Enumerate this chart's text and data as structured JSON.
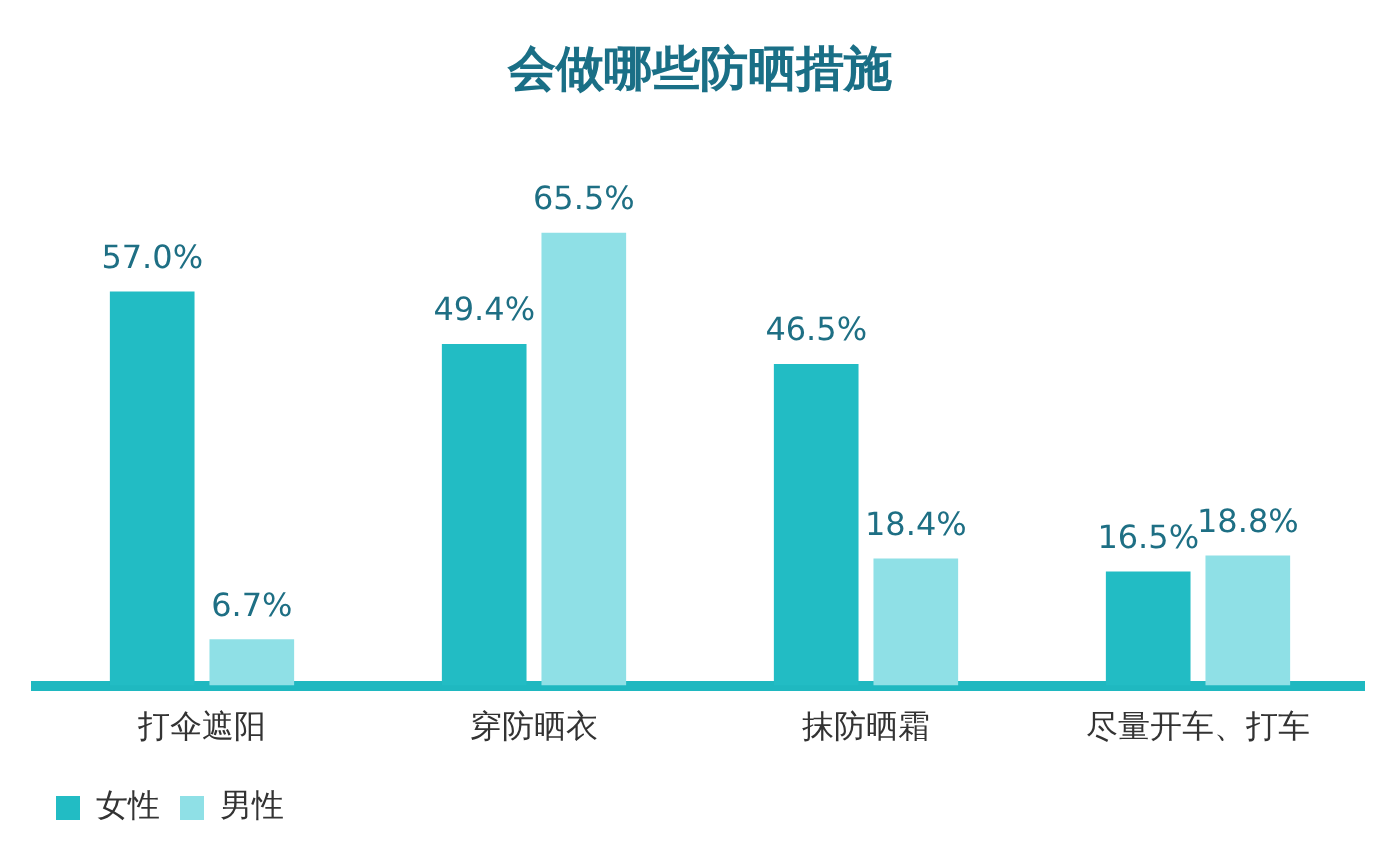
{
  "chart_data": {
    "type": "bar",
    "title": "会做哪些防晒措施",
    "categories": [
      "打伞遮阳",
      "穿防晒衣",
      "抹防晒霜",
      "尽量开车、打车"
    ],
    "series": [
      {
        "name": "女性",
        "color": "#22bcc4",
        "values": [
          57.0,
          49.4,
          46.5,
          16.5
        ],
        "value_labels": [
          "57.0%",
          "49.4%",
          "46.5%",
          "16.5%"
        ]
      },
      {
        "name": "男性",
        "color": "#8fe0e6",
        "values": [
          6.7,
          65.5,
          18.4,
          18.8
        ],
        "value_labels": [
          "6.7%",
          "65.5%",
          "18.4%",
          "18.8%"
        ]
      }
    ],
    "grid": false,
    "legend": "bottom left"
  }
}
